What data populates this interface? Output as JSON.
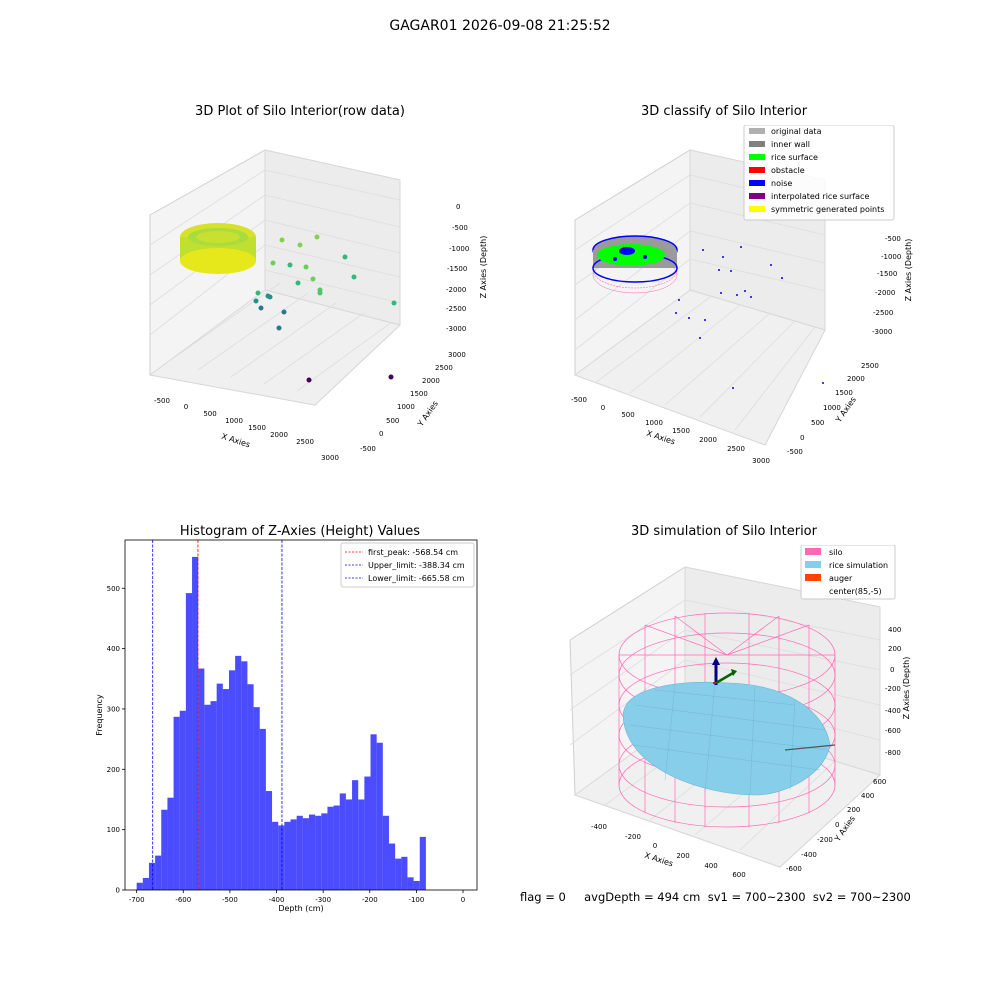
{
  "suptitle": "GAGAR01 2026-09-08 21:25:52",
  "plots": {
    "p1": {
      "title": "3D Plot of Silo Interior(row data)",
      "xlabel": "X Axies",
      "ylabel": "Y Axies",
      "zlabel": "Z Axies (Depth)",
      "xticks": [
        "-500",
        "0",
        "500",
        "1000",
        "1500",
        "2000",
        "2500",
        "3000"
      ],
      "yticks": [
        "-500",
        "0",
        "500",
        "1000",
        "1500",
        "2000",
        "2500",
        "3000"
      ],
      "zticks": [
        "0",
        "-500",
        "-1000",
        "-1500",
        "-2000",
        "-2500",
        "-3000"
      ]
    },
    "p2": {
      "title": "3D classify of Silo Interior",
      "xlabel": "X Axies",
      "ylabel": "Y Axies",
      "zlabel": "Z Axies (Depth)",
      "xticks": [
        "-500",
        "0",
        "500",
        "1000",
        "1500",
        "2000",
        "2500",
        "3000"
      ],
      "yticks": [
        "-500",
        "0",
        "500",
        "1000",
        "1500",
        "2000",
        "2500"
      ],
      "zticks": [
        "-500",
        "-1000",
        "-1500",
        "-2000",
        "-2500",
        "-3000"
      ],
      "legend": [
        {
          "label": "original data",
          "color": "#b0b0b0"
        },
        {
          "label": "inner wall",
          "color": "#808080"
        },
        {
          "label": "rice surface",
          "color": "#00ff00"
        },
        {
          "label": "obstacle",
          "color": "#ff0000"
        },
        {
          "label": "noise",
          "color": "#0000ff"
        },
        {
          "label": "interpolated rice surface",
          "color": "#800080"
        },
        {
          "label": "symmetric generated points",
          "color": "#ffff00"
        }
      ]
    },
    "p4": {
      "title": "3D simulation of Silo Interior",
      "xlabel": "X Axies",
      "ylabel": "Y Axies",
      "zlabel": "Z Axies (Depth)",
      "xticks": [
        "-400",
        "-200",
        "0",
        "200",
        "400",
        "600"
      ],
      "yticks": [
        "600",
        "400",
        "200",
        "0",
        "-200",
        "-400",
        "-600"
      ],
      "zticks": [
        "400",
        "200",
        "0",
        "-200",
        "-400",
        "-600",
        "-800"
      ],
      "legend": [
        {
          "label": "silo",
          "color": "#ff69b4"
        },
        {
          "label": "rice simulation",
          "color": "#87ceeb"
        },
        {
          "label": "auger",
          "color": "#ff4500"
        },
        {
          "label": "center(85,-5)",
          "color": "#ffffff"
        }
      ]
    }
  },
  "footer": "flag = 0     avgDepth = 494 cm  sv1 = 700~2300  sv2 = 700~2300",
  "chart_data": {
    "type": "bar",
    "title": "Histogram of Z-Axies (Height) Values",
    "xlabel": "Depth (cm)",
    "ylabel": "Frequency",
    "xlim": [
      -725,
      30
    ],
    "ylim": [
      0,
      580
    ],
    "xticks": [
      -700,
      -600,
      -500,
      -400,
      -300,
      -200,
      -100,
      0
    ],
    "yticks": [
      0,
      100,
      200,
      300,
      400,
      500
    ],
    "bin_start": -700,
    "bin_width": 13.2,
    "values": [
      12,
      20,
      45,
      57,
      133,
      153,
      287,
      297,
      492,
      552,
      367,
      307,
      313,
      342,
      333,
      364,
      388,
      379,
      341,
      303,
      267,
      164,
      113,
      107,
      113,
      117,
      123,
      119,
      125,
      123,
      127,
      138,
      140,
      160,
      150,
      182,
      150,
      188,
      258,
      244,
      123,
      77,
      52,
      55,
      21,
      15,
      88
    ],
    "lines": [
      {
        "label": "first_peak: -568.54 cm",
        "x": -568.54,
        "color": "#ff0000"
      },
      {
        "label": "Upper_limit: -388.34 cm",
        "x": -388.34,
        "color": "#0000ff"
      },
      {
        "label": "Lower_limit: -665.58 cm",
        "x": -665.58,
        "color": "#0000ff"
      }
    ],
    "bar_color": "#0000ff"
  }
}
